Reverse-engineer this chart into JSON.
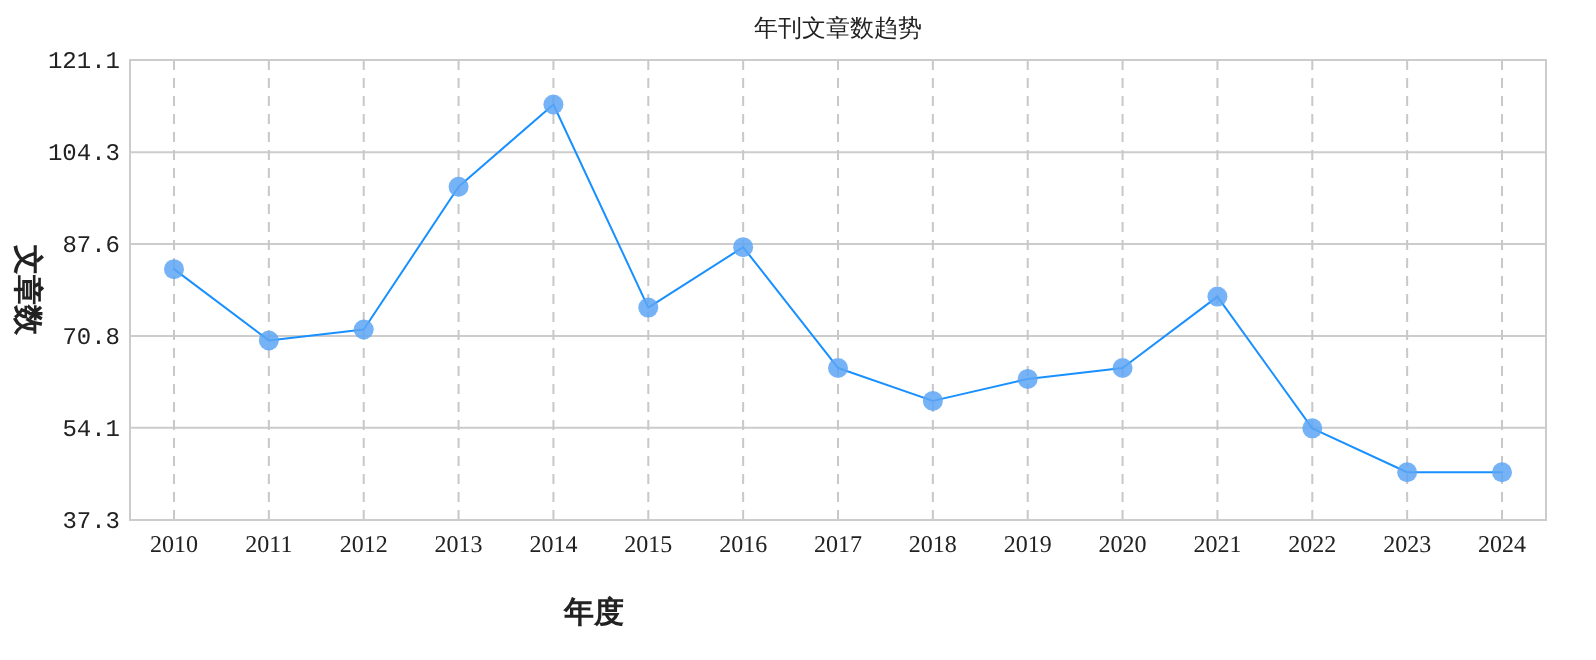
{
  "chart_data": {
    "type": "line",
    "title": "年刊文章数趋势",
    "xlabel": "年度",
    "ylabel": "文章数",
    "categories": [
      "2010",
      "2011",
      "2012",
      "2013",
      "2014",
      "2015",
      "2016",
      "2017",
      "2018",
      "2019",
      "2020",
      "2021",
      "2022",
      "2023",
      "2024"
    ],
    "series": [
      {
        "color": "#1890ff",
        "values": [
          83,
          70,
          72,
          98,
          113,
          76,
          87,
          65,
          59,
          63,
          65,
          78,
          54,
          46,
          46
        ]
      }
    ],
    "ylim": [
      37.3,
      121.1
    ],
    "yticks": [
      37.3,
      54.1,
      70.8,
      87.6,
      104.3,
      121.1
    ],
    "grid": true,
    "marker": "circle",
    "line_style": "solid"
  }
}
